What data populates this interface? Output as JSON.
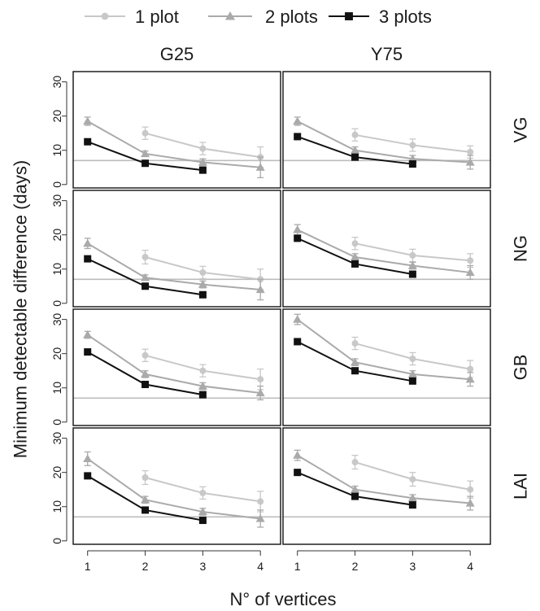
{
  "chart_data": {
    "type": "line",
    "ylabel": "Minimum detectable difference (days)",
    "xlabel": "N° of vertices",
    "x_ticks": [
      1,
      2,
      3,
      4
    ],
    "xlim": [
      0.75,
      4.35
    ],
    "ylim": [
      -1,
      33
    ],
    "y_ticks": [
      0,
      10,
      20,
      30
    ],
    "column_labels": [
      "G25",
      "Y75"
    ],
    "row_labels": [
      "VG",
      "NG",
      "GB",
      "LAI"
    ],
    "reference_line_y": 7,
    "legend_position": "top",
    "series": [
      {
        "name": "1 plot",
        "color": "#c8c8c8",
        "marker": "circle"
      },
      {
        "name": "2 plots",
        "color": "#aaaaaa",
        "marker": "triangle"
      },
      {
        "name": "3 plots",
        "color": "#111111",
        "marker": "square"
      }
    ],
    "panels": [
      {
        "col_label": "G25",
        "row_label": "VG",
        "series": [
          {
            "name": "1 plot",
            "x": [
              2,
              3,
              4
            ],
            "y": [
              15,
              10.5,
              8
            ],
            "err": [
              1.8,
              1.8,
              3
            ]
          },
          {
            "name": "2 plots",
            "x": [
              1,
              2,
              3,
              4
            ],
            "y": [
              18.5,
              9,
              6.5,
              5
            ],
            "err": [
              1.2,
              0.8,
              1,
              3
            ]
          },
          {
            "name": "3 plots",
            "x": [
              1,
              2,
              3
            ],
            "y": [
              12.5,
              6.2,
              4.2
            ],
            "err": [
              0,
              0,
              0
            ]
          }
        ]
      },
      {
        "col_label": "Y75",
        "row_label": "VG",
        "series": [
          {
            "name": "1 plot",
            "x": [
              2,
              3,
              4
            ],
            "y": [
              14.5,
              11.5,
              9.5
            ],
            "err": [
              1.8,
              1.8,
              1.8
            ]
          },
          {
            "name": "2 plots",
            "x": [
              1,
              2,
              3,
              4
            ],
            "y": [
              18.5,
              10,
              7.5,
              6.5
            ],
            "err": [
              1.2,
              1,
              1,
              2
            ]
          },
          {
            "name": "3 plots",
            "x": [
              1,
              2,
              3
            ],
            "y": [
              14,
              8,
              6
            ],
            "err": [
              0,
              0,
              0
            ]
          }
        ]
      },
      {
        "col_label": "G25",
        "row_label": "NG",
        "series": [
          {
            "name": "1 plot",
            "x": [
              2,
              3,
              4
            ],
            "y": [
              13.5,
              9,
              7
            ],
            "err": [
              2,
              1.8,
              3
            ]
          },
          {
            "name": "2 plots",
            "x": [
              1,
              2,
              3,
              4
            ],
            "y": [
              17.5,
              7.5,
              5.5,
              4
            ],
            "err": [
              1.5,
              0.8,
              1,
              3
            ]
          },
          {
            "name": "3 plots",
            "x": [
              1,
              2,
              3
            ],
            "y": [
              13,
              5,
              2.5
            ],
            "err": [
              0,
              0,
              0
            ]
          }
        ]
      },
      {
        "col_label": "Y75",
        "row_label": "NG",
        "series": [
          {
            "name": "1 plot",
            "x": [
              2,
              3,
              4
            ],
            "y": [
              17.5,
              14,
              12.5
            ],
            "err": [
              1.8,
              1.8,
              2
            ]
          },
          {
            "name": "2 plots",
            "x": [
              1,
              2,
              3,
              4
            ],
            "y": [
              21.5,
              13.5,
              11,
              9
            ],
            "err": [
              1.5,
              1,
              1,
              2
            ]
          },
          {
            "name": "3 plots",
            "x": [
              1,
              2,
              3
            ],
            "y": [
              19,
              11.5,
              8.5
            ],
            "err": [
              0,
              0,
              0
            ]
          }
        ]
      },
      {
        "col_label": "G25",
        "row_label": "GB",
        "series": [
          {
            "name": "1 plot",
            "x": [
              2,
              3,
              4
            ],
            "y": [
              19.5,
              15,
              12.5
            ],
            "err": [
              1.8,
              1.8,
              3
            ]
          },
          {
            "name": "2 plots",
            "x": [
              1,
              2,
              3,
              4
            ],
            "y": [
              25.5,
              14,
              10.5,
              8.5
            ],
            "err": [
              1,
              1,
              1,
              2
            ]
          },
          {
            "name": "3 plots",
            "x": [
              1,
              2,
              3
            ],
            "y": [
              20.5,
              11,
              8
            ],
            "err": [
              0,
              0,
              0
            ]
          }
        ]
      },
      {
        "col_label": "Y75",
        "row_label": "GB",
        "series": [
          {
            "name": "1 plot",
            "x": [
              2,
              3,
              4
            ],
            "y": [
              23,
              18.5,
              15.5
            ],
            "err": [
              1.8,
              1.8,
              2.5
            ]
          },
          {
            "name": "2 plots",
            "x": [
              1,
              2,
              3,
              4
            ],
            "y": [
              30,
              17.5,
              14,
              12.5
            ],
            "err": [
              1.5,
              1,
              1,
              2
            ]
          },
          {
            "name": "3 plots",
            "x": [
              1,
              2,
              3
            ],
            "y": [
              23.5,
              15,
              12
            ],
            "err": [
              0,
              0,
              0
            ]
          }
        ]
      },
      {
        "col_label": "G25",
        "row_label": "LAI",
        "series": [
          {
            "name": "1 plot",
            "x": [
              2,
              3,
              4
            ],
            "y": [
              18.5,
              14,
              11.5
            ],
            "err": [
              2,
              1.8,
              3
            ]
          },
          {
            "name": "2 plots",
            "x": [
              1,
              2,
              3,
              4
            ],
            "y": [
              24,
              12,
              8.5,
              6.5
            ],
            "err": [
              2,
              1,
              1,
              2.5
            ]
          },
          {
            "name": "3 plots",
            "x": [
              1,
              2,
              3
            ],
            "y": [
              19,
              9,
              6
            ],
            "err": [
              0,
              0,
              0
            ]
          }
        ]
      },
      {
        "col_label": "Y75",
        "row_label": "LAI",
        "series": [
          {
            "name": "1 plot",
            "x": [
              2,
              3,
              4
            ],
            "y": [
              23,
              18,
              15
            ],
            "err": [
              2,
              2,
              2.5
            ]
          },
          {
            "name": "2 plots",
            "x": [
              1,
              2,
              3,
              4
            ],
            "y": [
              25,
              15,
              12.5,
              11
            ],
            "err": [
              1.5,
              1,
              1,
              2
            ]
          },
          {
            "name": "3 plots",
            "x": [
              1,
              2,
              3
            ],
            "y": [
              20,
              13,
              10.5
            ],
            "err": [
              0,
              0,
              0
            ]
          }
        ]
      }
    ]
  }
}
